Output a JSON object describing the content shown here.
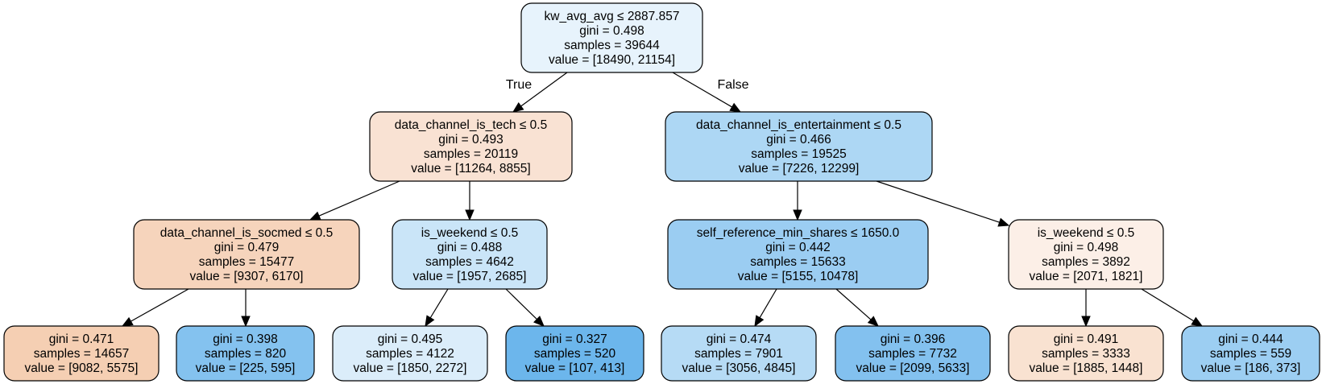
{
  "tree": {
    "nodes": [
      {
        "id": "n0",
        "lines": [
          "kw_avg_avg ≤ 2887.857",
          "gini = 0.498",
          "samples = 39644",
          "value = [18490, 21154]"
        ],
        "fill": "#e7f3fc"
      },
      {
        "id": "n1",
        "lines": [
          "data_channel_is_tech ≤ 0.5",
          "gini = 0.493",
          "samples = 20119",
          "value = [11264, 8855]"
        ],
        "fill": "#f9e2d3"
      },
      {
        "id": "n2",
        "lines": [
          "data_channel_is_socmed ≤ 0.5",
          "gini = 0.479",
          "samples = 15477",
          "value = [9307, 6170]"
        ],
        "fill": "#f6d4bc"
      },
      {
        "id": "n3",
        "lines": [
          "gini = 0.471",
          "samples = 14657",
          "value = [9082, 5575]"
        ],
        "fill": "#f5cfb3"
      },
      {
        "id": "n4",
        "lines": [
          "gini = 0.398",
          "samples = 820",
          "value = [225, 595]"
        ],
        "fill": "#84c2ef"
      },
      {
        "id": "n5",
        "lines": [
          "is_weekend ≤ 0.5",
          "gini = 0.488",
          "samples = 4642",
          "value = [1957, 2685]"
        ],
        "fill": "#cae5f8"
      },
      {
        "id": "n6",
        "lines": [
          "gini = 0.495",
          "samples = 4122",
          "value = [1850, 2272]"
        ],
        "fill": "#dbedfa"
      },
      {
        "id": "n7",
        "lines": [
          "gini = 0.327",
          "samples = 520",
          "value = [107, 413]"
        ],
        "fill": "#6cb6ec"
      },
      {
        "id": "n8",
        "lines": [
          "data_channel_is_entertainment ≤ 0.5",
          "gini = 0.466",
          "samples = 19525",
          "value = [7226, 12299]"
        ],
        "fill": "#add7f4"
      },
      {
        "id": "n9",
        "lines": [
          "self_reference_min_shares ≤ 1650.0",
          "gini = 0.442",
          "samples = 15633",
          "value = [5155, 10478]"
        ],
        "fill": "#9bcdf2"
      },
      {
        "id": "n10",
        "lines": [
          "gini = 0.474",
          "samples = 7901",
          "value = [3056, 4845]"
        ],
        "fill": "#b6dbf5"
      },
      {
        "id": "n11",
        "lines": [
          "gini = 0.396",
          "samples = 7732",
          "value = [2099, 5633]"
        ],
        "fill": "#83c1ef"
      },
      {
        "id": "n12",
        "lines": [
          "is_weekend ≤ 0.5",
          "gini = 0.498",
          "samples = 3892",
          "value = [2071, 1821]"
        ],
        "fill": "#fcefe7"
      },
      {
        "id": "n13",
        "lines": [
          "gini = 0.491",
          "samples = 3333",
          "value = [1885, 1448]"
        ],
        "fill": "#f9e2d1"
      },
      {
        "id": "n14",
        "lines": [
          "gini = 0.444",
          "samples = 559",
          "value = [186, 373]"
        ],
        "fill": "#9ccef2"
      }
    ],
    "edges": [
      {
        "from": "n0",
        "to": "n1",
        "label": "True"
      },
      {
        "from": "n0",
        "to": "n8",
        "label": "False"
      },
      {
        "from": "n1",
        "to": "n2",
        "label": ""
      },
      {
        "from": "n1",
        "to": "n5",
        "label": ""
      },
      {
        "from": "n2",
        "to": "n3",
        "label": ""
      },
      {
        "from": "n2",
        "to": "n4",
        "label": ""
      },
      {
        "from": "n5",
        "to": "n6",
        "label": ""
      },
      {
        "from": "n5",
        "to": "n7",
        "label": ""
      },
      {
        "from": "n8",
        "to": "n9",
        "label": ""
      },
      {
        "from": "n8",
        "to": "n12",
        "label": ""
      },
      {
        "from": "n9",
        "to": "n10",
        "label": ""
      },
      {
        "from": "n9",
        "to": "n11",
        "label": ""
      },
      {
        "from": "n12",
        "to": "n13",
        "label": ""
      },
      {
        "from": "n12",
        "to": "n14",
        "label": ""
      }
    ]
  }
}
